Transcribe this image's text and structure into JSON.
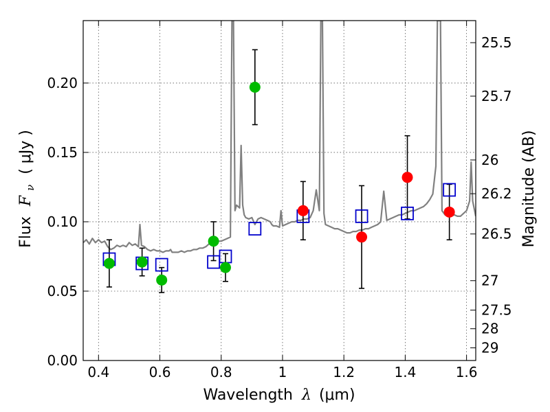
{
  "chart_data": {
    "type": "scatter",
    "title": "",
    "xlabel": {
      "prefix": "Wavelength",
      "symbol": "λ",
      "unit": "(μm)"
    },
    "ylabel": {
      "prefix": "Flux",
      "symbol": "F",
      "subscript": "ν",
      "unit": "( μJy )"
    },
    "ylabel_right": "Magnitude (AB)",
    "xlim": [
      0.35,
      1.63
    ],
    "ylim": [
      0.0,
      0.245
    ],
    "grid": true,
    "x_ticks": [
      {
        "v": 0.4,
        "label": "0.4"
      },
      {
        "v": 0.6,
        "label": "0.6"
      },
      {
        "v": 0.8,
        "label": "0.8"
      },
      {
        "v": 1.0,
        "label": "1"
      },
      {
        "v": 1.2,
        "label": "1.2"
      },
      {
        "v": 1.4,
        "label": "1.4"
      },
      {
        "v": 1.6,
        "label": "1.6"
      }
    ],
    "y_ticks": [
      {
        "v": 0.0,
        "label": "0.00"
      },
      {
        "v": 0.05,
        "label": "0.05"
      },
      {
        "v": 0.1,
        "label": "0.10"
      },
      {
        "v": 0.15,
        "label": "0.15"
      },
      {
        "v": 0.2,
        "label": "0.20"
      }
    ],
    "mag_ticks": [
      {
        "m": 25.5,
        "label": "25.5"
      },
      {
        "m": 25.7,
        "label": "25.7"
      },
      {
        "m": 26,
        "label": "26"
      },
      {
        "m": 26.2,
        "label": "26.2"
      },
      {
        "m": 26.5,
        "label": "26.5"
      },
      {
        "m": 27,
        "label": "27"
      },
      {
        "m": 27.5,
        "label": "27.5"
      },
      {
        "m": 28,
        "label": "28"
      },
      {
        "m": 29,
        "label": "29"
      }
    ],
    "series": [
      {
        "name": "model spectrum",
        "kind": "line",
        "color": "#808080",
        "points": [
          [
            0.35,
            0.085
          ],
          [
            0.36,
            0.087
          ],
          [
            0.37,
            0.084
          ],
          [
            0.38,
            0.088
          ],
          [
            0.39,
            0.085
          ],
          [
            0.4,
            0.087
          ],
          [
            0.41,
            0.085
          ],
          [
            0.42,
            0.086
          ],
          [
            0.43,
            0.082
          ],
          [
            0.44,
            0.08
          ],
          [
            0.45,
            0.081
          ],
          [
            0.46,
            0.083
          ],
          [
            0.47,
            0.082
          ],
          [
            0.48,
            0.083
          ],
          [
            0.49,
            0.082
          ],
          [
            0.5,
            0.085
          ],
          [
            0.51,
            0.083
          ],
          [
            0.52,
            0.084
          ],
          [
            0.53,
            0.082
          ],
          [
            0.535,
            0.098
          ],
          [
            0.54,
            0.083
          ],
          [
            0.55,
            0.082
          ],
          [
            0.56,
            0.08
          ],
          [
            0.57,
            0.079
          ],
          [
            0.58,
            0.08
          ],
          [
            0.59,
            0.079
          ],
          [
            0.6,
            0.079
          ],
          [
            0.61,
            0.078
          ],
          [
            0.62,
            0.079
          ],
          [
            0.63,
            0.079
          ],
          [
            0.635,
            0.08
          ],
          [
            0.64,
            0.078
          ],
          [
            0.65,
            0.078
          ],
          [
            0.66,
            0.078
          ],
          [
            0.67,
            0.079
          ],
          [
            0.68,
            0.078
          ],
          [
            0.69,
            0.079
          ],
          [
            0.7,
            0.079
          ],
          [
            0.71,
            0.08
          ],
          [
            0.72,
            0.08
          ],
          [
            0.73,
            0.081
          ],
          [
            0.74,
            0.081
          ],
          [
            0.75,
            0.082
          ],
          [
            0.76,
            0.084
          ],
          [
            0.765,
            0.087
          ],
          [
            0.77,
            0.084
          ],
          [
            0.78,
            0.085
          ],
          [
            0.79,
            0.086
          ],
          [
            0.8,
            0.086
          ],
          [
            0.81,
            0.087
          ],
          [
            0.82,
            0.088
          ],
          [
            0.83,
            0.089
          ],
          [
            0.835,
            0.245
          ],
          [
            0.84,
            0.245
          ],
          [
            0.845,
            0.108
          ],
          [
            0.85,
            0.112
          ],
          [
            0.86,
            0.11
          ],
          [
            0.865,
            0.155
          ],
          [
            0.87,
            0.112
          ],
          [
            0.875,
            0.105
          ],
          [
            0.88,
            0.103
          ],
          [
            0.89,
            0.102
          ],
          [
            0.9,
            0.103
          ],
          [
            0.91,
            0.098
          ],
          [
            0.92,
            0.102
          ],
          [
            0.93,
            0.103
          ],
          [
            0.94,
            0.102
          ],
          [
            0.95,
            0.101
          ],
          [
            0.96,
            0.1
          ],
          [
            0.965,
            0.098
          ],
          [
            0.97,
            0.097
          ],
          [
            0.98,
            0.097
          ],
          [
            0.99,
            0.096
          ],
          [
            0.995,
            0.108
          ],
          [
            1.0,
            0.097
          ],
          [
            1.01,
            0.098
          ],
          [
            1.02,
            0.099
          ],
          [
            1.03,
            0.1
          ],
          [
            1.04,
            0.1
          ],
          [
            1.05,
            0.101
          ],
          [
            1.06,
            0.101
          ],
          [
            1.07,
            0.102
          ],
          [
            1.08,
            0.102
          ],
          [
            1.09,
            0.103
          ],
          [
            1.1,
            0.108
          ],
          [
            1.11,
            0.123
          ],
          [
            1.12,
            0.108
          ],
          [
            1.125,
            0.245
          ],
          [
            1.13,
            0.245
          ],
          [
            1.135,
            0.106
          ],
          [
            1.14,
            0.098
          ],
          [
            1.15,
            0.097
          ],
          [
            1.16,
            0.096
          ],
          [
            1.17,
            0.095
          ],
          [
            1.18,
            0.095
          ],
          [
            1.19,
            0.094
          ],
          [
            1.2,
            0.093
          ],
          [
            1.21,
            0.092
          ],
          [
            1.22,
            0.092
          ],
          [
            1.23,
            0.093
          ],
          [
            1.24,
            0.093
          ],
          [
            1.25,
            0.094
          ],
          [
            1.26,
            0.094
          ],
          [
            1.27,
            0.095
          ],
          [
            1.28,
            0.095
          ],
          [
            1.29,
            0.096
          ],
          [
            1.3,
            0.097
          ],
          [
            1.31,
            0.098
          ],
          [
            1.32,
            0.1
          ],
          [
            1.33,
            0.122
          ],
          [
            1.34,
            0.101
          ],
          [
            1.35,
            0.102
          ],
          [
            1.36,
            0.103
          ],
          [
            1.37,
            0.104
          ],
          [
            1.38,
            0.105
          ],
          [
            1.39,
            0.105
          ],
          [
            1.4,
            0.106
          ],
          [
            1.41,
            0.107
          ],
          [
            1.42,
            0.108
          ],
          [
            1.43,
            0.108
          ],
          [
            1.44,
            0.109
          ],
          [
            1.45,
            0.11
          ],
          [
            1.46,
            0.111
          ],
          [
            1.47,
            0.113
          ],
          [
            1.48,
            0.116
          ],
          [
            1.49,
            0.12
          ],
          [
            1.5,
            0.14
          ],
          [
            1.505,
            0.245
          ],
          [
            1.515,
            0.245
          ],
          [
            1.52,
            0.108
          ],
          [
            1.53,
            0.105
          ],
          [
            1.54,
            0.104
          ],
          [
            1.55,
            0.104
          ],
          [
            1.56,
            0.105
          ],
          [
            1.57,
            0.104
          ],
          [
            1.58,
            0.104
          ],
          [
            1.59,
            0.106
          ],
          [
            1.6,
            0.108
          ],
          [
            1.61,
            0.115
          ],
          [
            1.615,
            0.143
          ],
          [
            1.62,
            0.115
          ],
          [
            1.63,
            0.104
          ]
        ]
      },
      {
        "name": "observed (green)",
        "kind": "points",
        "color": "#00bb00",
        "points": [
          {
            "x": 0.435,
            "y": 0.07,
            "err": 0.017
          },
          {
            "x": 0.542,
            "y": 0.071,
            "err": 0.01
          },
          {
            "x": 0.606,
            "y": 0.058,
            "err": 0.009
          },
          {
            "x": 0.775,
            "y": 0.086,
            "err": 0.014
          },
          {
            "x": 0.814,
            "y": 0.067,
            "err": 0.01
          },
          {
            "x": 0.91,
            "y": 0.197,
            "err": 0.027
          }
        ]
      },
      {
        "name": "observed (red)",
        "kind": "points",
        "color": "#ff0000",
        "points": [
          {
            "x": 1.067,
            "y": 0.108,
            "err": 0.021
          },
          {
            "x": 1.258,
            "y": 0.089,
            "err": 0.037
          },
          {
            "x": 1.407,
            "y": 0.132,
            "err": 0.03
          },
          {
            "x": 1.544,
            "y": 0.107,
            "err": 0.02
          }
        ]
      },
      {
        "name": "model photometry",
        "kind": "open-squares",
        "color": "#0000cc",
        "points": [
          {
            "x": 0.435,
            "y": 0.073
          },
          {
            "x": 0.542,
            "y": 0.07
          },
          {
            "x": 0.606,
            "y": 0.069
          },
          {
            "x": 0.775,
            "y": 0.071
          },
          {
            "x": 0.814,
            "y": 0.075
          },
          {
            "x": 0.91,
            "y": 0.095
          },
          {
            "x": 1.067,
            "y": 0.104
          },
          {
            "x": 1.258,
            "y": 0.104
          },
          {
            "x": 1.407,
            "y": 0.106
          },
          {
            "x": 1.544,
            "y": 0.123
          }
        ]
      }
    ]
  }
}
